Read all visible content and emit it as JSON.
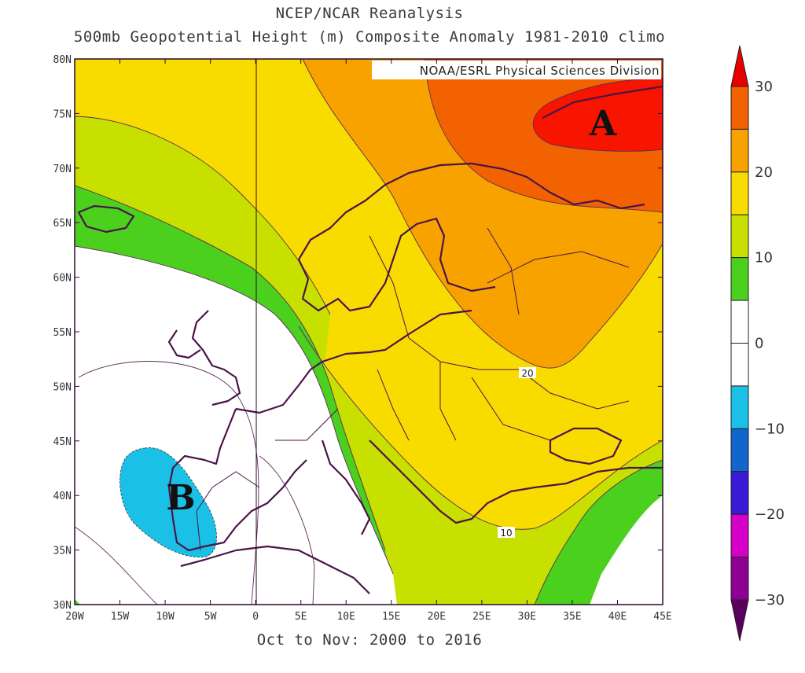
{
  "title": {
    "line1": "NCEP/NCAR Reanalysis",
    "line2": "500mb Geopotential Height (m) Composite Anomaly 1981-2010 climo"
  },
  "credit": "NOAA/ESRL Physical Sciences Division",
  "footer": "Oct to Nov: 2000 to 2016",
  "markers": {
    "high": "A",
    "low": "B"
  },
  "contour_labels": [
    "20",
    "10"
  ],
  "axes": {
    "lon_labels": [
      "20W",
      "15W",
      "10W",
      "5W",
      "0",
      "5E",
      "10E",
      "15E",
      "20E",
      "25E",
      "30E",
      "35E",
      "40E",
      "45E"
    ],
    "lat_labels": [
      "80N",
      "75N",
      "70N",
      "65N",
      "60N",
      "55N",
      "50N",
      "45N",
      "40N",
      "35N",
      "30N"
    ]
  },
  "colorbar": {
    "labels": [
      "30",
      "20",
      "10",
      "0",
      "−10",
      "−20",
      "−30"
    ],
    "colors": [
      "#e80000",
      "#f26200",
      "#f8a200",
      "#f8dc00",
      "#c8e000",
      "#4cd01e",
      "#ffffff",
      "#ffffff",
      "#1ac0e6",
      "#1066cc",
      "#3a1ad6",
      "#d400c8",
      "#8e0094",
      "#5a005e"
    ]
  },
  "palette": {
    "anom_30": "#f81500",
    "anom_25": "#f26200",
    "anom_20": "#f8a200",
    "anom_15": "#f8dc00",
    "anom_10": "#c8e000",
    "anom_5": "#4cd01e",
    "anom_0": "#ffffff",
    "anom_neg5": "#1ac0e6",
    "coastline": "#4a1448"
  }
}
